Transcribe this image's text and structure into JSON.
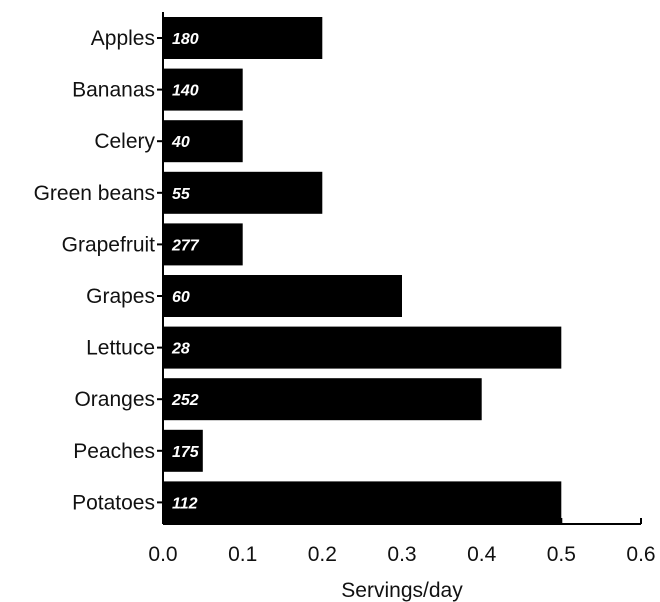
{
  "chart_data": {
    "type": "bar",
    "orientation": "horizontal",
    "categories": [
      "Apples",
      "Bananas",
      "Celery",
      "Green beans",
      "Grapefruit",
      "Grapes",
      "Lettuce",
      "Oranges",
      "Peaches",
      "Potatoes"
    ],
    "values": [
      0.2,
      0.1,
      0.1,
      0.2,
      0.1,
      0.3,
      0.5,
      0.4,
      0.05,
      0.5
    ],
    "bar_labels": [
      "180",
      "140",
      "40",
      "55",
      "277",
      "60",
      "28",
      "252",
      "175",
      "112"
    ],
    "xlabel": "Servings/day",
    "ylabel": "",
    "title": "",
    "xlim": [
      0.0,
      0.6
    ],
    "xticks": [
      "0.0",
      "0.1",
      "0.2",
      "0.3",
      "0.4",
      "0.5",
      "0.6"
    ],
    "grid": false,
    "bar_color": "#000000",
    "bar_label_color": "#ffffff"
  }
}
